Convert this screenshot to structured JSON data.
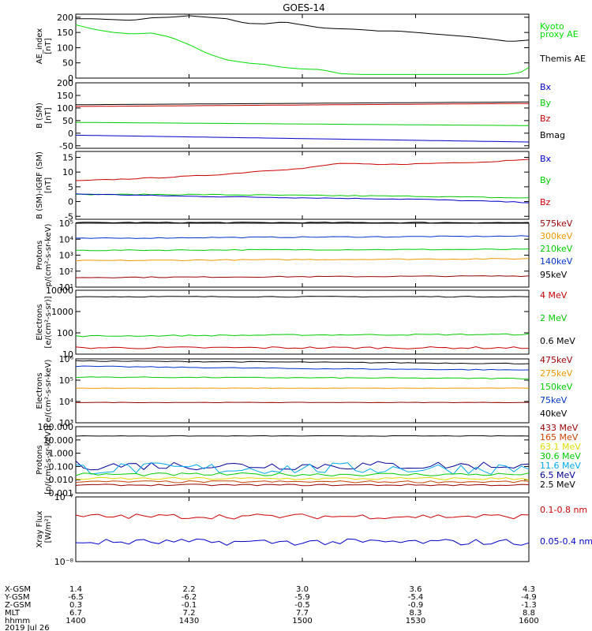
{
  "title": "GOES-14",
  "chart_data": [
    {
      "type": "line",
      "ylabel": [
        "AE_index",
        "[nT]"
      ],
      "yscale": "linear",
      "ylim": [
        0,
        210
      ],
      "yticks": [
        0,
        50,
        100,
        150,
        200
      ],
      "yticklabels": [
        "0",
        "50",
        "100",
        "150",
        "200"
      ],
      "legend": [
        {
          "text": "Kyoto",
          "color": "#00dd00"
        },
        {
          "text": "proxy AE",
          "color": "#00dd00"
        },
        {
          "text": "Themis AE",
          "color": "#000000"
        }
      ],
      "series": [
        {
          "name": "Kyoto proxy AE",
          "color": "#00dd00",
          "x": [
            1400,
            1405,
            1410,
            1415,
            1420,
            1425,
            1430,
            1435,
            1440,
            1445,
            1450,
            1455,
            1500,
            1505,
            1510,
            1515,
            1520,
            1525,
            1530,
            1535,
            1540,
            1545,
            1550,
            1555,
            1558,
            1600
          ],
          "y": [
            175,
            160,
            150,
            145,
            148,
            135,
            110,
            80,
            60,
            50,
            45,
            35,
            30,
            28,
            15,
            12,
            12,
            12,
            12,
            12,
            12,
            12,
            12,
            12,
            20,
            35
          ]
        },
        {
          "name": "Themis AE",
          "color": "#000000",
          "x": [
            1400,
            1405,
            1410,
            1415,
            1420,
            1425,
            1430,
            1435,
            1440,
            1445,
            1450,
            1455,
            1500,
            1505,
            1510,
            1515,
            1520,
            1525,
            1530,
            1535,
            1540,
            1545,
            1550,
            1555,
            1600
          ],
          "y": [
            195,
            195,
            192,
            190,
            198,
            200,
            205,
            200,
            195,
            180,
            178,
            185,
            175,
            165,
            162,
            160,
            155,
            155,
            150,
            145,
            140,
            135,
            128,
            120,
            125
          ]
        }
      ]
    },
    {
      "type": "line",
      "ylabel": [
        "B (SM)",
        "[nT]"
      ],
      "yscale": "linear",
      "ylim": [
        -60,
        200
      ],
      "yticks": [
        -50,
        0,
        50,
        100,
        150,
        200
      ],
      "yticklabels": [
        "-50",
        "0",
        "50",
        "100",
        "150",
        "200"
      ],
      "legend": [
        {
          "text": "Bx",
          "color": "#0000cc"
        },
        {
          "text": "By",
          "color": "#00cc00"
        },
        {
          "text": "Bz",
          "color": "#cc0000"
        },
        {
          "text": "Bmag",
          "color": "#000000"
        }
      ],
      "series": [
        {
          "name": "Bx",
          "color": "#0000cc",
          "x": [
            1400,
            1600
          ],
          "y": [
            -8,
            -35
          ]
        },
        {
          "name": "By",
          "color": "#00cc00",
          "x": [
            1400,
            1600
          ],
          "y": [
            43,
            30
          ]
        },
        {
          "name": "Bz",
          "color": "#cc0000",
          "x": [
            1400,
            1600
          ],
          "y": [
            106,
            118
          ]
        },
        {
          "name": "Bmag",
          "color": "#000000",
          "x": [
            1400,
            1600
          ],
          "y": [
            113,
            124
          ]
        }
      ]
    },
    {
      "type": "line",
      "ylabel": [
        "B (SM)-IGRF (SM)",
        "[nT]"
      ],
      "yscale": "linear",
      "ylim": [
        -6,
        17
      ],
      "yticks": [
        -5,
        0,
        5,
        10,
        15
      ],
      "yticklabels": [
        "-5",
        "0",
        "5",
        "10",
        "15"
      ],
      "legend": [
        {
          "text": "Bx",
          "color": "#0000cc"
        },
        {
          "text": "By",
          "color": "#00cc00"
        },
        {
          "text": "Bz",
          "color": "#cc0000"
        }
      ],
      "series": [
        {
          "name": "Bz",
          "color": "#cc0000",
          "x": [
            1400,
            1410,
            1420,
            1430,
            1440,
            1450,
            1500,
            1510,
            1520,
            1530,
            1540,
            1550,
            1600
          ],
          "y": [
            7,
            7.5,
            8,
            8.6,
            9.3,
            10.5,
            11.2,
            13,
            12.5,
            12.8,
            13.2,
            13.5,
            14.5
          ]
        },
        {
          "name": "By",
          "color": "#00cc00",
          "x": [
            1400,
            1430,
            1500,
            1530,
            1600
          ],
          "y": [
            2.4,
            2.4,
            2.1,
            1.8,
            1.2
          ]
        },
        {
          "name": "Bx",
          "color": "#0000cc",
          "x": [
            1400,
            1430,
            1500,
            1530,
            1600
          ],
          "y": [
            2.6,
            1.8,
            1.3,
            0.8,
            -0.3
          ]
        }
      ]
    },
    {
      "type": "line",
      "ylabel": [
        "Protons",
        "p/(cm²-s-sr-keV)"
      ],
      "yscale": "log",
      "ylim": [
        10,
        100000
      ],
      "yticks": [
        10,
        100,
        1000,
        10000,
        100000
      ],
      "yticklabels": [
        "10¹",
        "10²",
        "10³",
        "10⁴",
        "10⁵"
      ],
      "legend": [
        {
          "text": "575keV",
          "color": "#990000"
        },
        {
          "text": "300keV",
          "color": "#ee9900"
        },
        {
          "text": "210keV",
          "color": "#00cc00"
        },
        {
          "text": "140keV",
          "color": "#0033cc"
        },
        {
          "text": "95keV",
          "color": "#000000"
        }
      ],
      "series": [
        {
          "name": "95keV",
          "color": "#000000",
          "x": [
            1400,
            1600
          ],
          "y": [
            110000,
            110000
          ]
        },
        {
          "name": "140keV",
          "color": "#0033cc",
          "x": [
            1400,
            1430,
            1500,
            1530,
            1600
          ],
          "y": [
            11000,
            12500,
            13500,
            14500,
            15500
          ]
        },
        {
          "name": "210keV",
          "color": "#00cc00",
          "x": [
            1400,
            1500,
            1600
          ],
          "y": [
            2000,
            2200,
            2300
          ]
        },
        {
          "name": "300keV",
          "color": "#ee9900",
          "x": [
            1400,
            1500,
            1600
          ],
          "y": [
            450,
            530,
            600
          ]
        },
        {
          "name": "575keV",
          "color": "#990000",
          "x": [
            1400,
            1500,
            1600
          ],
          "y": [
            40,
            45,
            50
          ]
        }
      ]
    },
    {
      "type": "line",
      "ylabel": [
        "Electrons",
        "[e/(cm²-s-sr)]"
      ],
      "yscale": "log",
      "ylim": [
        10,
        10000
      ],
      "yticks": [
        10,
        100,
        1000,
        10000
      ],
      "yticklabels": [
        "10",
        "100",
        "1000",
        "10000"
      ],
      "legend": [
        {
          "text": "4 MeV",
          "color": "#cc0000"
        },
        {
          "text": "2 MeV",
          "color": "#00cc00"
        },
        {
          "text": "0.6 MeV",
          "color": "#000000"
        }
      ],
      "series": [
        {
          "name": "0.6 MeV",
          "color": "#000000",
          "x": [
            1400,
            1600
          ],
          "y": [
            5000,
            5000
          ]
        },
        {
          "name": "2 MeV",
          "color": "#00cc00",
          "x": [
            1400,
            1500,
            1600
          ],
          "y": [
            70,
            80,
            85
          ]
        },
        {
          "name": "4 MeV",
          "color": "#cc0000",
          "x": [
            1400,
            1500,
            1600
          ],
          "y": [
            20,
            20,
            20
          ]
        }
      ]
    },
    {
      "type": "line",
      "ylabel": [
        "Electrons",
        "e/(cm²-s-sr-keV)"
      ],
      "yscale": "log",
      "ylim": [
        1000,
        1000000
      ],
      "yticks": [
        1000,
        10000,
        100000,
        1000000
      ],
      "yticklabels": [
        "10³",
        "10⁴",
        "10⁵",
        "10⁶"
      ],
      "legend": [
        {
          "text": "475keV",
          "color": "#990000"
        },
        {
          "text": "275keV",
          "color": "#ee9900"
        },
        {
          "text": "150keV",
          "color": "#00cc00"
        },
        {
          "text": "75keV",
          "color": "#0033cc"
        },
        {
          "text": "40keV",
          "color": "#000000"
        }
      ],
      "series": [
        {
          "name": "40keV",
          "color": "#000000",
          "x": [
            1400,
            1500,
            1600
          ],
          "y": [
            800000,
            700000,
            600000
          ]
        },
        {
          "name": "75keV",
          "color": "#0033cc",
          "x": [
            1400,
            1500,
            1600
          ],
          "y": [
            450000,
            350000,
            300000
          ]
        },
        {
          "name": "150keV",
          "color": "#00cc00",
          "x": [
            1400,
            1500,
            1600
          ],
          "y": [
            140000,
            130000,
            120000
          ]
        },
        {
          "name": "275keV",
          "color": "#ee9900",
          "x": [
            1400,
            1600
          ],
          "y": [
            42000,
            42000
          ]
        },
        {
          "name": "475keV",
          "color": "#990000",
          "x": [
            1400,
            1600
          ],
          "y": [
            9000,
            9000
          ]
        }
      ]
    },
    {
      "type": "line",
      "ylabel": [
        "Protons",
        "[p/(cm²-s-sr-keV)]"
      ],
      "yscale": "log",
      "ylim": [
        0.001,
        100
      ],
      "yticks": [
        0.001,
        0.01,
        0.1,
        1,
        10,
        100
      ],
      "yticklabels": [
        "0.001",
        "0.010",
        "0.100",
        "1.000",
        "10.000",
        "100.000"
      ],
      "legend": [
        {
          "text": "433 MeV",
          "color": "#990000"
        },
        {
          "text": "165 MeV",
          "color": "#cc4400"
        },
        {
          "text": "63.1 MeV",
          "color": "#dddd00"
        },
        {
          "text": "30.6 MeV",
          "color": "#00cc00"
        },
        {
          "text": "11.6 MeV",
          "color": "#00aaee"
        },
        {
          "text": "6.5 MeV",
          "color": "#000099"
        },
        {
          "text": "2.5 MeV",
          "color": "#000000"
        }
      ],
      "series": [
        {
          "name": "2.5 MeV",
          "color": "#000000",
          "x": [
            1400,
            1600
          ],
          "y": [
            20,
            20
          ]
        },
        {
          "name": "6.5 MeV",
          "color": "#000099",
          "x": [
            1400,
            1600
          ],
          "y": [
            0.12,
            0.12
          ]
        },
        {
          "name": "11.6 MeV",
          "color": "#00aaee",
          "x": [
            1400,
            1600
          ],
          "y": [
            0.07,
            0.07
          ]
        },
        {
          "name": "30.6 MeV",
          "color": "#00cc00",
          "x": [
            1400,
            1600
          ],
          "y": [
            0.025,
            0.025
          ]
        },
        {
          "name": "63.1 MeV",
          "color": "#dddd00",
          "x": [
            1400,
            1600
          ],
          "y": [
            0.012,
            0.012
          ]
        },
        {
          "name": "165 MeV",
          "color": "#cc4400",
          "x": [
            1400,
            1600
          ],
          "y": [
            0.007,
            0.007
          ]
        },
        {
          "name": "433 MeV",
          "color": "#990000",
          "x": [
            1400,
            1600
          ],
          "y": [
            0.004,
            0.004
          ]
        }
      ]
    },
    {
      "type": "line",
      "ylabel": [
        "Xray Flux",
        "[W/m²]"
      ],
      "yscale": "log",
      "ylim": [
        1e-08,
        1e-07
      ],
      "yticks": [
        1e-08,
        1e-07
      ],
      "yticklabels": [
        "10⁻⁸",
        "10⁻⁷"
      ],
      "legend": [
        {
          "text": "0.1-0.8 nm",
          "color": "#cc0000"
        },
        {
          "text": "0.05-0.4 nm",
          "color": "#0000cc"
        }
      ],
      "series": [
        {
          "name": "0.1-0.8 nm",
          "color": "#cc0000",
          "x": [
            1400,
            1600
          ],
          "y": [
            5e-08,
            5e-08
          ]
        },
        {
          "name": "0.05-0.4 nm",
          "color": "#0000cc",
          "x": [
            1400,
            1600
          ],
          "y": [
            2e-08,
            2e-08
          ]
        }
      ]
    }
  ],
  "x_axis": {
    "ticks": [
      1400,
      1430,
      1500,
      1530,
      1600
    ],
    "row_labels": [
      "X-GSM",
      "Y-GSM",
      "Z-GSM",
      "MLT",
      "hhmm"
    ],
    "rows": [
      [
        "1.4",
        "2.2",
        "3.0",
        "3.6",
        "4.3"
      ],
      [
        "-6.5",
        "-6.2",
        "-5.9",
        "-5.4",
        "-4.9"
      ],
      [
        "0.3",
        "-0.1",
        "-0.5",
        "-0.9",
        "-1.3"
      ],
      [
        "6.7",
        "7.2",
        "7.7",
        "8.3",
        "8.8"
      ],
      [
        "1400",
        "1430",
        "1500",
        "1530",
        "1600"
      ]
    ],
    "date": "2019 Jul 26"
  }
}
